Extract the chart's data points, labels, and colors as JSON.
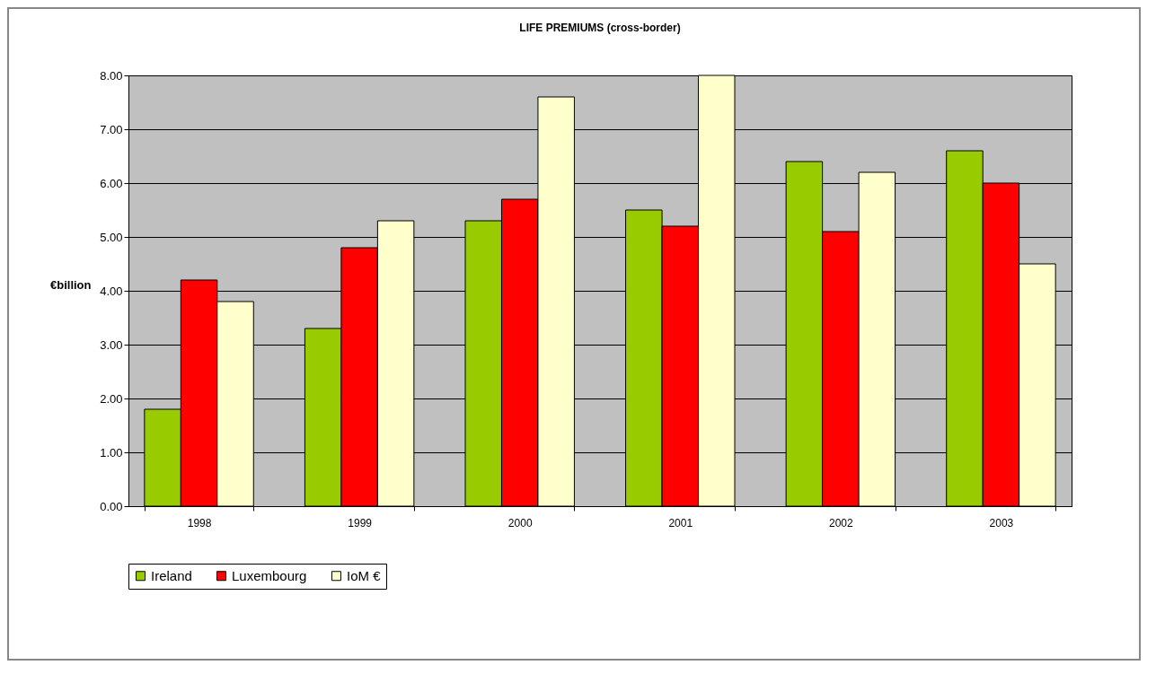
{
  "chart_data": {
    "type": "bar",
    "title": "LIFE PREMIUMS (cross-border)",
    "ylabel": "€billion",
    "categories": [
      "1998",
      "1999",
      "2000",
      "2001",
      "2002",
      "2003"
    ],
    "series": [
      {
        "name": "Ireland",
        "color": "#99cc00",
        "values": [
          1.8,
          3.3,
          5.3,
          5.5,
          6.4,
          6.6
        ]
      },
      {
        "name": "Luxembourg",
        "color": "#ff0000",
        "values": [
          4.2,
          4.8,
          5.7,
          5.2,
          5.1,
          6.0
        ]
      },
      {
        "name": "IoM €",
        "color": "#ffffcc",
        "values": [
          3.8,
          5.3,
          7.6,
          8.0,
          6.2,
          4.5
        ]
      }
    ],
    "ylim": [
      0,
      8
    ],
    "yticks": [
      {
        "value": 0,
        "label": "0.00"
      },
      {
        "value": 1,
        "label": "1.00"
      },
      {
        "value": 2,
        "label": "2.00"
      },
      {
        "value": 3,
        "label": "3.00"
      },
      {
        "value": 4,
        "label": "4.00"
      },
      {
        "value": 5,
        "label": "5.00"
      },
      {
        "value": 6,
        "label": "6.00"
      },
      {
        "value": 7,
        "label": "7.00"
      },
      {
        "value": 8,
        "label": "8.00"
      }
    ],
    "grid": "y",
    "legend": "bottom"
  }
}
